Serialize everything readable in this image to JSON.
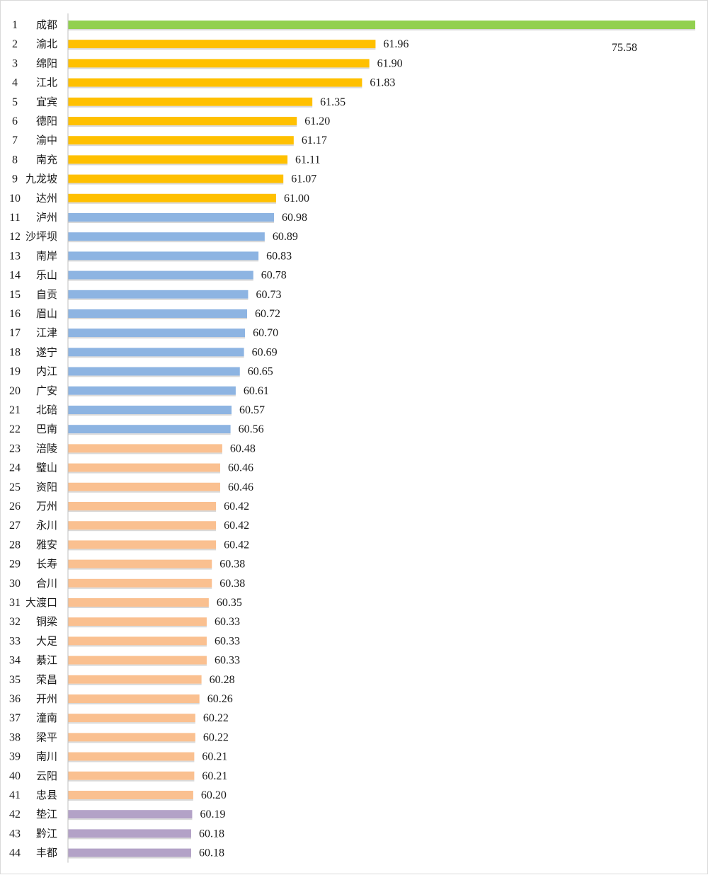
{
  "chart_data": {
    "type": "bar",
    "orientation": "horizontal",
    "title": "",
    "xlabel": "",
    "ylabel": "",
    "xlim": [
      0,
      75.58
    ],
    "grid": false,
    "legend": "none",
    "colors": {
      "top": "#92d050",
      "tier2": "#ffc000",
      "tier3": "#8db4e2",
      "tier4": "#fac090",
      "tier5": "#b3a2c7",
      "axis": "#bfbfbf"
    },
    "rows": [
      {
        "rank": "1",
        "name": "成都",
        "value": 75.58,
        "tier": "top"
      },
      {
        "rank": "2",
        "name": "渝北",
        "value": 61.96,
        "tier": "tier2"
      },
      {
        "rank": "3",
        "name": "绵阳",
        "value": 61.9,
        "tier": "tier2"
      },
      {
        "rank": "4",
        "name": "江北",
        "value": 61.83,
        "tier": "tier2"
      },
      {
        "rank": "5",
        "name": "宜宾",
        "value": 61.35,
        "tier": "tier2"
      },
      {
        "rank": "6",
        "name": "德阳",
        "value": 61.2,
        "tier": "tier2"
      },
      {
        "rank": "7",
        "name": "渝中",
        "value": 61.17,
        "tier": "tier2"
      },
      {
        "rank": "8",
        "name": "南充",
        "value": 61.11,
        "tier": "tier2"
      },
      {
        "rank": "9",
        "name": "九龙坡",
        "value": 61.07,
        "tier": "tier2"
      },
      {
        "rank": "10",
        "name": "达州",
        "value": 61.0,
        "tier": "tier2"
      },
      {
        "rank": "11",
        "name": "泸州",
        "value": 60.98,
        "tier": "tier3"
      },
      {
        "rank": "12",
        "name": "沙坪坝",
        "value": 60.89,
        "tier": "tier3"
      },
      {
        "rank": "13",
        "name": "南岸",
        "value": 60.83,
        "tier": "tier3"
      },
      {
        "rank": "14",
        "name": "乐山",
        "value": 60.78,
        "tier": "tier3"
      },
      {
        "rank": "15",
        "name": "自贡",
        "value": 60.73,
        "tier": "tier3"
      },
      {
        "rank": "16",
        "name": "眉山",
        "value": 60.72,
        "tier": "tier3"
      },
      {
        "rank": "17",
        "name": "江津",
        "value": 60.7,
        "tier": "tier3"
      },
      {
        "rank": "18",
        "name": "遂宁",
        "value": 60.69,
        "tier": "tier3"
      },
      {
        "rank": "19",
        "name": "内江",
        "value": 60.65,
        "tier": "tier3"
      },
      {
        "rank": "20",
        "name": "广安",
        "value": 60.61,
        "tier": "tier3"
      },
      {
        "rank": "21",
        "name": "北碚",
        "value": 60.57,
        "tier": "tier3"
      },
      {
        "rank": "22",
        "name": "巴南",
        "value": 60.56,
        "tier": "tier3"
      },
      {
        "rank": "23",
        "name": "涪陵",
        "value": 60.48,
        "tier": "tier4"
      },
      {
        "rank": "24",
        "name": "璧山",
        "value": 60.46,
        "tier": "tier4"
      },
      {
        "rank": "25",
        "name": "资阳",
        "value": 60.46,
        "tier": "tier4"
      },
      {
        "rank": "26",
        "name": "万州",
        "value": 60.42,
        "tier": "tier4"
      },
      {
        "rank": "27",
        "name": "永川",
        "value": 60.42,
        "tier": "tier4"
      },
      {
        "rank": "28",
        "name": "雅安",
        "value": 60.42,
        "tier": "tier4"
      },
      {
        "rank": "29",
        "name": "长寿",
        "value": 60.38,
        "tier": "tier4"
      },
      {
        "rank": "30",
        "name": "合川",
        "value": 60.38,
        "tier": "tier4"
      },
      {
        "rank": "31",
        "name": "大渡口",
        "value": 60.35,
        "tier": "tier4"
      },
      {
        "rank": "32",
        "name": "铜梁",
        "value": 60.33,
        "tier": "tier4"
      },
      {
        "rank": "33",
        "name": "大足",
        "value": 60.33,
        "tier": "tier4"
      },
      {
        "rank": "34",
        "name": "綦江",
        "value": 60.33,
        "tier": "tier4"
      },
      {
        "rank": "35",
        "name": "荣昌",
        "value": 60.28,
        "tier": "tier4"
      },
      {
        "rank": "36",
        "name": "开州",
        "value": 60.26,
        "tier": "tier4"
      },
      {
        "rank": "37",
        "name": "潼南",
        "value": 60.22,
        "tier": "tier4"
      },
      {
        "rank": "38",
        "name": "梁平",
        "value": 60.22,
        "tier": "tier4"
      },
      {
        "rank": "39",
        "name": "南川",
        "value": 60.21,
        "tier": "tier4"
      },
      {
        "rank": "40",
        "name": "云阳",
        "value": 60.21,
        "tier": "tier4"
      },
      {
        "rank": "41",
        "name": "忠县",
        "value": 60.2,
        "tier": "tier4"
      },
      {
        "rank": "42",
        "name": "垫江",
        "value": 60.19,
        "tier": "tier5"
      },
      {
        "rank": "43",
        "name": "黔江",
        "value": 60.18,
        "tier": "tier5"
      },
      {
        "rank": "44",
        "name": "丰都",
        "value": 60.18,
        "tier": "tier5"
      }
    ]
  }
}
